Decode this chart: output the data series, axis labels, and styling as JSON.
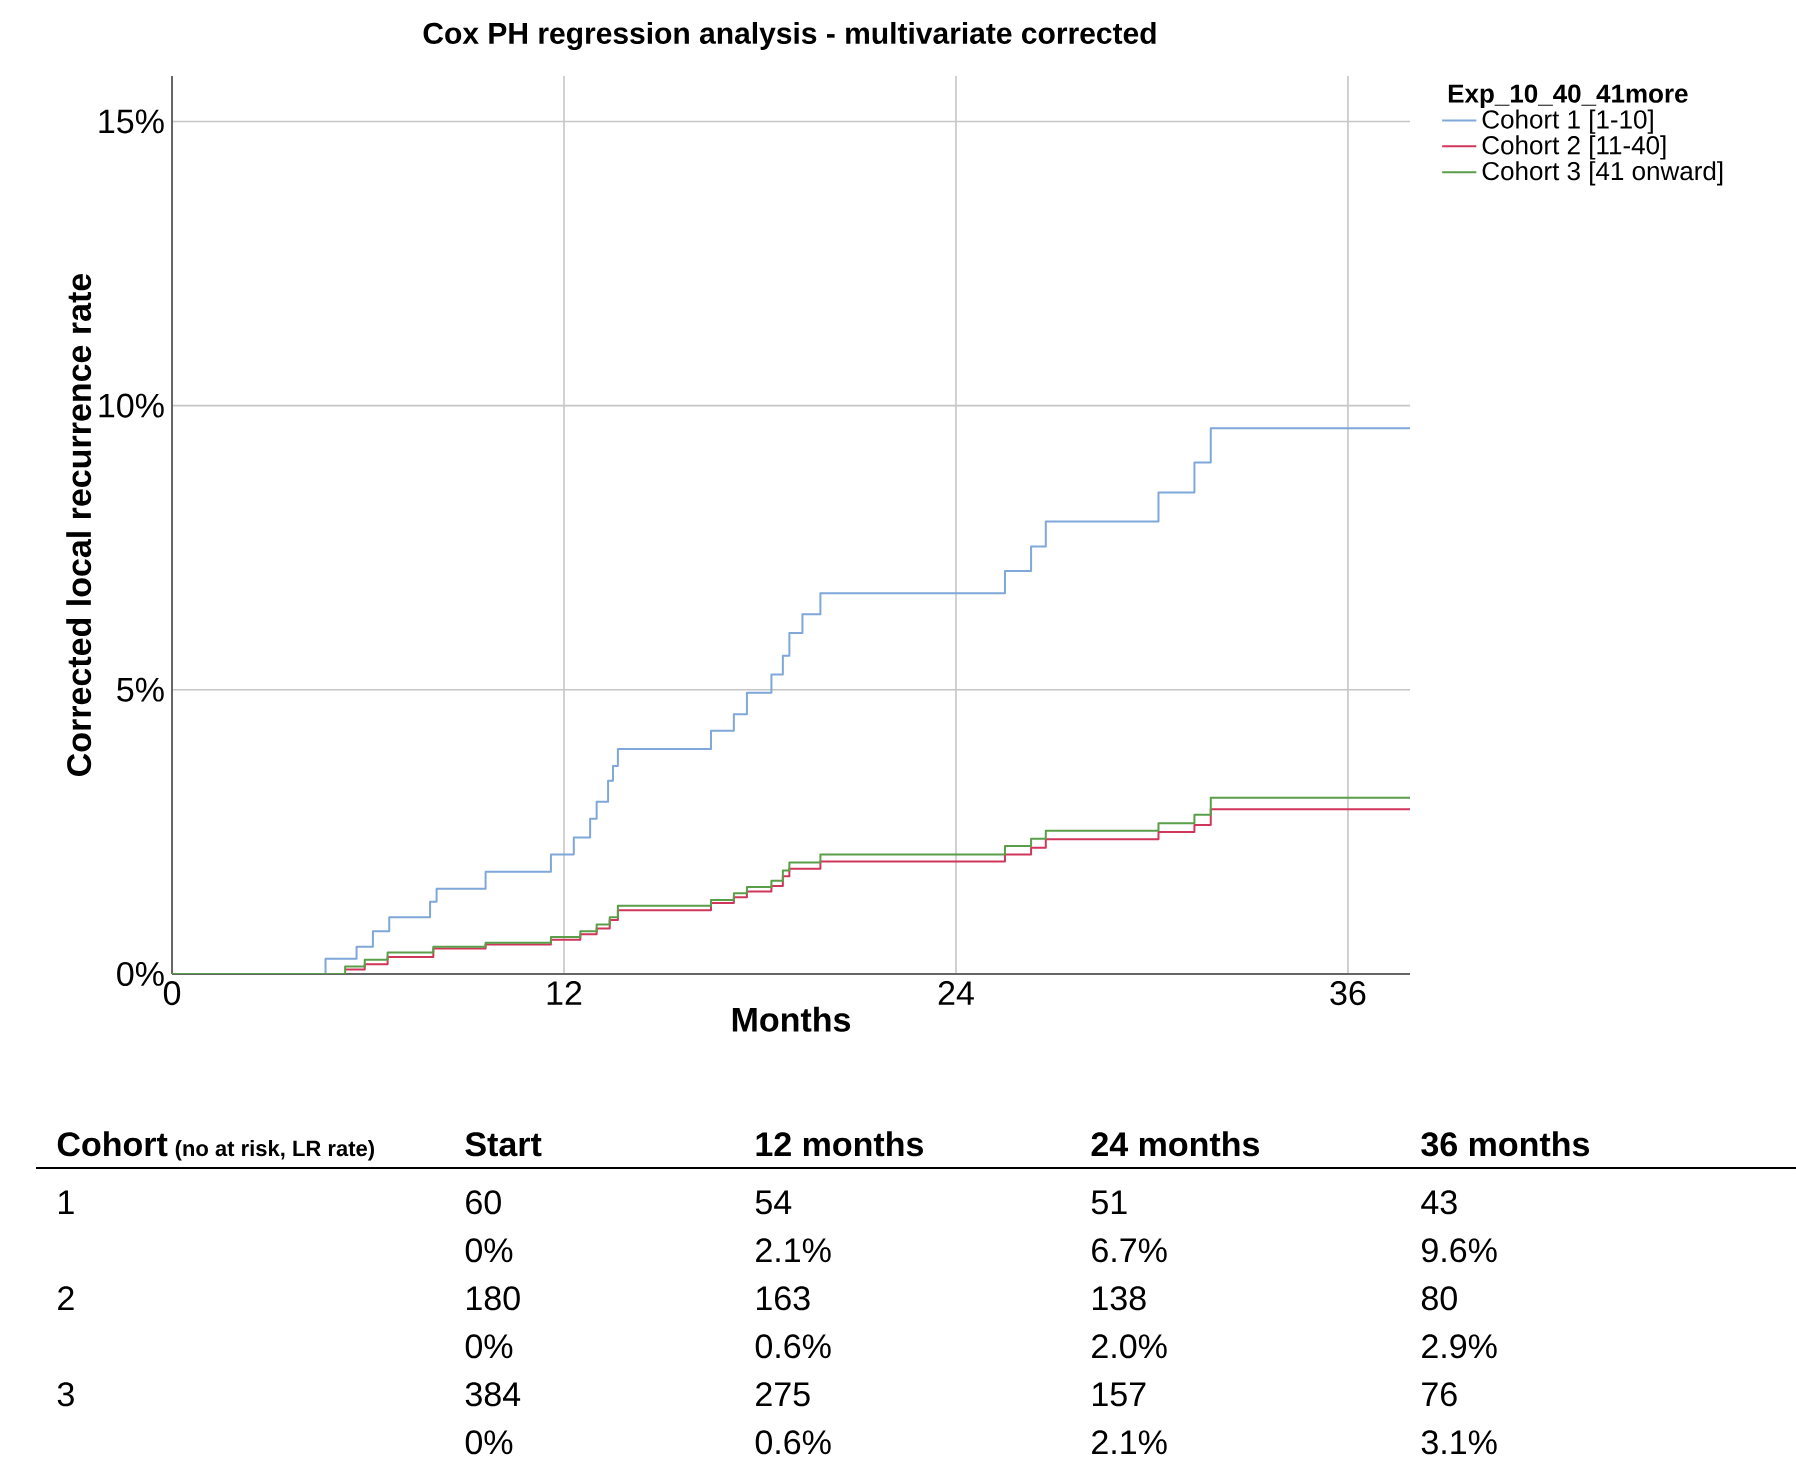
{
  "chart_data": {
    "type": "step",
    "title": "Cox PH regression analysis - multivariate corrected",
    "xlabel": "Months",
    "ylabel": "Corrected local recurrence rate",
    "legend_title": "Exp_10_40_41more",
    "xlim": [
      0,
      37.9
    ],
    "ylim": [
      0,
      15.8
    ],
    "xticks": [
      0,
      12,
      24,
      36
    ],
    "yticks": [
      {
        "value": 0,
        "label": "0%"
      },
      {
        "value": 5,
        "label": "5%"
      },
      {
        "value": 10,
        "label": "10%"
      },
      {
        "value": 15,
        "label": "15%"
      }
    ],
    "grid": true,
    "legend": "right",
    "series": [
      {
        "name": "Cohort 1 [1-10]",
        "color": "#7fa7d9",
        "x": [
          0,
          4.7,
          5.65,
          6.15,
          6.65,
          7.9,
          8.1,
          9.6,
          11.6,
          12.3,
          12.8,
          13.0,
          13.35,
          13.5,
          13.65,
          16.5,
          17.2,
          17.6,
          18.35,
          18.7,
          18.9,
          19.3,
          19.85,
          25.5,
          26.3,
          26.75,
          30.2,
          31.3,
          31.8,
          37.9
        ],
        "values": [
          0,
          0.27,
          0.48,
          0.75,
          1.0,
          1.27,
          1.5,
          1.8,
          2.1,
          2.4,
          2.73,
          3.03,
          3.4,
          3.66,
          3.96,
          4.28,
          4.57,
          4.95,
          5.27,
          5.6,
          6.0,
          6.33,
          6.7,
          7.09,
          7.52,
          7.96,
          8.47,
          9.0,
          9.6,
          9.6
        ]
      },
      {
        "name": "Cohort 2 [11-40]",
        "color": "#d0365a",
        "x": [
          5.3,
          5.9,
          6.6,
          8.0,
          9.6,
          11.6,
          12.5,
          13.0,
          13.4,
          13.65,
          16.5,
          17.2,
          17.6,
          18.35,
          18.7,
          18.9,
          19.85,
          25.5,
          26.3,
          26.75,
          30.2,
          31.3,
          31.8,
          37.9
        ],
        "values": [
          0.08,
          0.17,
          0.3,
          0.45,
          0.52,
          0.6,
          0.7,
          0.8,
          0.95,
          1.12,
          1.25,
          1.35,
          1.45,
          1.55,
          1.72,
          1.85,
          1.98,
          2.1,
          2.22,
          2.37,
          2.5,
          2.62,
          2.9,
          2.9
        ]
      },
      {
        "name": "Cohort 3 [41 onward]",
        "color": "#5a9e4a",
        "x": [
          0,
          5.3,
          5.9,
          6.6,
          8.0,
          9.6,
          11.6,
          12.5,
          13.0,
          13.4,
          13.65,
          16.5,
          17.2,
          17.6,
          18.35,
          18.7,
          18.9,
          19.85,
          25.5,
          26.3,
          26.75,
          30.2,
          31.3,
          31.8,
          37.9
        ],
        "values": [
          0,
          0.13,
          0.25,
          0.38,
          0.48,
          0.55,
          0.65,
          0.75,
          0.87,
          1.0,
          1.2,
          1.3,
          1.42,
          1.53,
          1.64,
          1.82,
          1.96,
          2.1,
          2.25,
          2.38,
          2.52,
          2.65,
          2.8,
          3.1,
          3.1
        ]
      }
    ],
    "annotations": [
      "Cohort",
      "(no at risk, LR rate)",
      "Start",
      "12 months",
      "24 months",
      "36 months",
      "1",
      "60",
      "54",
      "51",
      "43",
      "0%",
      "2.1%",
      "6.7%",
      "9.6%",
      "2",
      "180",
      "163",
      "138",
      "80",
      "0%",
      "0.6%",
      "2.0%",
      "2.9%",
      "3",
      "384",
      "275",
      "157",
      "76",
      "0%",
      "0.6%",
      "2.1%",
      "3.1%"
    ]
  }
}
